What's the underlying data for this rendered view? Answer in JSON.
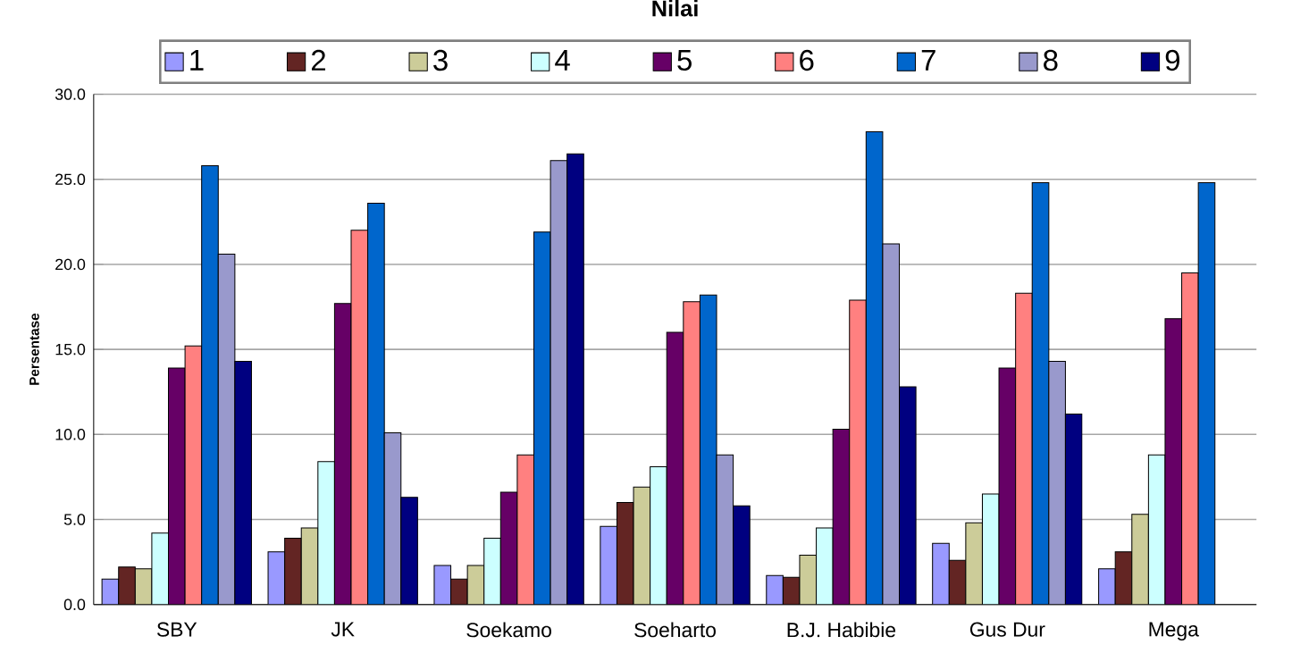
{
  "chart_data": {
    "type": "bar",
    "legend_title": "Nilai",
    "ylabel": "Persentase",
    "categories": [
      "SBY",
      "JK",
      "Soekamo",
      "Soeharto",
      "B.J. Habibie",
      "Gus Dur",
      "Mega"
    ],
    "series": [
      {
        "name": "1",
        "color": "#9999ff",
        "values": [
          1.5,
          3.1,
          2.3,
          4.6,
          1.7,
          3.6,
          2.1
        ]
      },
      {
        "name": "2",
        "color": "#632523",
        "values": [
          2.2,
          3.9,
          1.5,
          6.0,
          1.6,
          2.6,
          3.1
        ]
      },
      {
        "name": "3",
        "color": "#cccc99",
        "values": [
          2.1,
          4.5,
          2.3,
          6.9,
          2.9,
          4.8,
          5.3
        ]
      },
      {
        "name": "4",
        "color": "#ccffff",
        "values": [
          4.2,
          8.4,
          3.9,
          8.1,
          4.5,
          6.5,
          8.8
        ]
      },
      {
        "name": "5",
        "color": "#660066",
        "values": [
          13.9,
          17.7,
          6.6,
          16.0,
          10.3,
          13.9,
          16.8
        ]
      },
      {
        "name": "6",
        "color": "#ff8080",
        "values": [
          15.2,
          22.0,
          8.8,
          17.8,
          17.9,
          18.3,
          19.5
        ]
      },
      {
        "name": "7",
        "color": "#0066cc",
        "values": [
          25.8,
          23.6,
          21.9,
          18.2,
          27.8,
          24.8,
          24.8
        ]
      },
      {
        "name": "8",
        "color": "#9999cc",
        "values": [
          20.6,
          10.1,
          26.1,
          8.8,
          21.2,
          14.3,
          null
        ]
      },
      {
        "name": "9",
        "color": "#000080",
        "values": [
          14.3,
          6.3,
          26.5,
          5.8,
          12.8,
          11.2,
          null
        ]
      }
    ],
    "ylim": [
      0,
      30
    ],
    "yticks": [
      {
        "value": 0,
        "label": "0.0"
      },
      {
        "value": 5,
        "label": "5.0"
      },
      {
        "value": 10,
        "label": "10.0"
      },
      {
        "value": 15,
        "label": "15.0"
      },
      {
        "value": 20,
        "label": "20.0"
      },
      {
        "value": 25,
        "label": "25.0"
      },
      {
        "value": 30,
        "label": "30.0"
      }
    ],
    "grid": "y",
    "legend": "top"
  }
}
